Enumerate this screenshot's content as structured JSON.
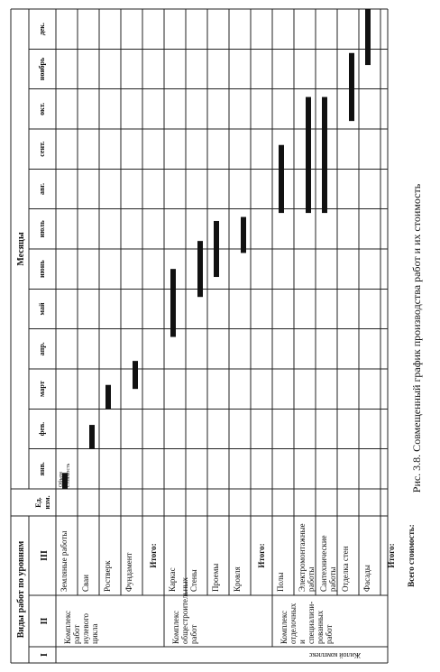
{
  "header": {
    "kinds_title": "Виды работ по уровням",
    "months_title": "Месяцы",
    "col_i": "I",
    "col_ii": "II",
    "col_iii": "III",
    "unit": "Ед. изм.",
    "months": [
      "янв.",
      "фев.",
      "март",
      "апр.",
      "май",
      "июнь",
      "июль",
      "авг.",
      "сент.",
      "окт.",
      "ноябрь",
      "дек."
    ],
    "legend_top": "Объем",
    "legend_bottom": "стоимость"
  },
  "level_i": "Жилой комплекс",
  "groups": [
    {
      "name": "Комплекс\nработ\nнулевого\nцикла",
      "rows": [
        "Земляные работы",
        "Сваи",
        "Ростверк",
        "Фундамент"
      ],
      "total": "Итого:"
    },
    {
      "name": "Комплекс\nобщестроительных\nработ",
      "rows": [
        "Каркас",
        "Стены",
        "Проемы",
        "Кровля"
      ],
      "total": "Итого:"
    },
    {
      "name": "Комплекс\nотделочных\nи специализи-\nрованных\nработ",
      "rows": [
        "Полы",
        "Электромонтажные\nработы",
        "Сантехнические\nработы",
        "Отделка стен",
        "Фасады"
      ],
      "total": "Итого:"
    }
  ],
  "grand_total": "Всего стоимость:",
  "chart_data": {
    "type": "gantt",
    "unit": "месяц",
    "tasks": [
      {
        "name": "Земляные работы",
        "start": 0.0,
        "end": 0.4
      },
      {
        "name": "Сваи",
        "start": 1.0,
        "end": 1.6
      },
      {
        "name": "Ростверк",
        "start": 2.0,
        "end": 2.6
      },
      {
        "name": "Фундамент",
        "start": 2.5,
        "end": 3.2
      },
      {
        "name": "Каркас",
        "start": 3.8,
        "end": 5.5
      },
      {
        "name": "Стены",
        "start": 4.8,
        "end": 6.2
      },
      {
        "name": "Проемы",
        "start": 5.3,
        "end": 6.7
      },
      {
        "name": "Кровля",
        "start": 5.9,
        "end": 6.8
      },
      {
        "name": "Полы",
        "start": 6.9,
        "end": 8.6
      },
      {
        "name": "Электромонтажные работы",
        "start": 6.9,
        "end": 9.8
      },
      {
        "name": "Сантехнические работы",
        "start": 6.9,
        "end": 9.8
      },
      {
        "name": "Отделка стен",
        "start": 9.2,
        "end": 10.9
      },
      {
        "name": "Фасады",
        "start": 10.6,
        "end": 12.0
      }
    ]
  },
  "caption": "Рис. 3.8. Совмещенный график производства работ и их стоимость"
}
